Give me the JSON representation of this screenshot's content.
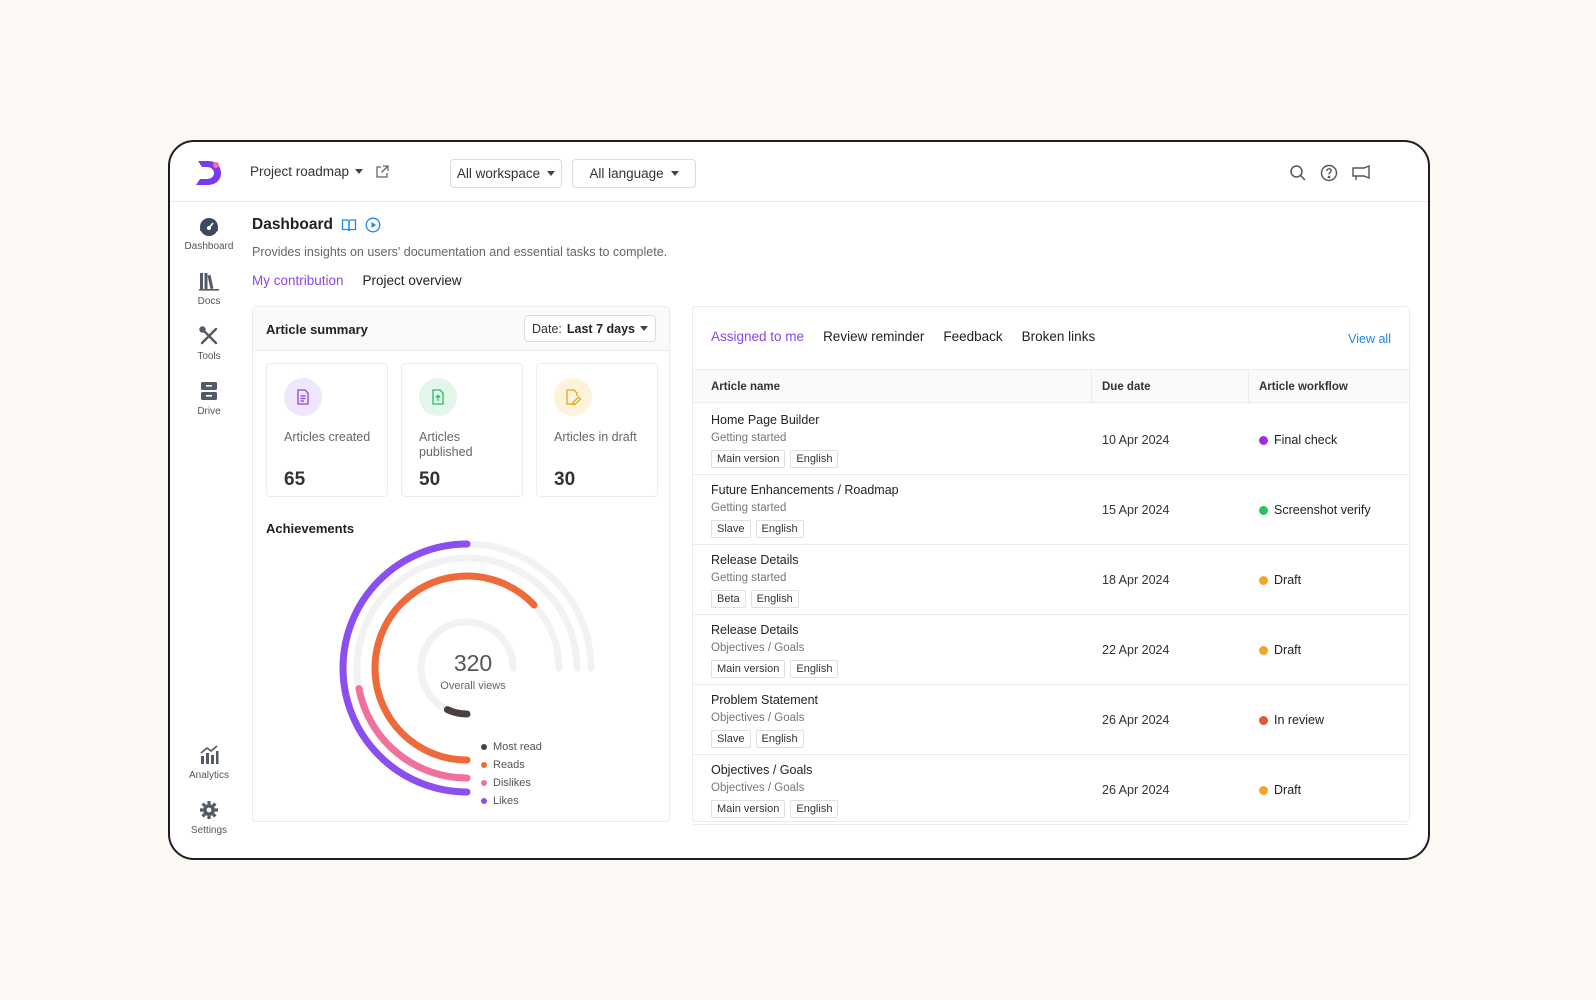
{
  "topbar": {
    "project": "Project roadmap",
    "workspace": "All workspace",
    "language": "All language"
  },
  "sidenav": [
    {
      "label": "Dashboard",
      "icon": "dashboard-icon"
    },
    {
      "label": "Docs",
      "icon": "docs-icon"
    },
    {
      "label": "Tools",
      "icon": "tools-icon"
    },
    {
      "label": "Drive",
      "icon": "drive-icon"
    },
    {
      "label": "Analytics",
      "icon": "analytics-icon"
    },
    {
      "label": "Settings",
      "icon": "gear-icon"
    }
  ],
  "header": {
    "title": "Dashboard",
    "description": "Provides insights on users' documentation and essential tasks to complete.",
    "tabs": [
      "My contribution",
      "Project overview"
    ]
  },
  "summary": {
    "title": "Article summary",
    "date_label": "Date:",
    "date_value": "Last 7 days",
    "cards": [
      {
        "label": "Articles created",
        "value": "65",
        "color": "#8b46e6",
        "bg": "#efe6fb"
      },
      {
        "label": "Articles published",
        "value": "50",
        "color": "#2fb36b",
        "bg": "#e3f6ea"
      },
      {
        "label": "Articles in draft",
        "value": "30",
        "color": "#e8a417",
        "bg": "#fdf3dd"
      }
    ]
  },
  "achievements": {
    "title": "Achievements",
    "center_value": "320",
    "center_label": "Overall views"
  },
  "chart_data": {
    "type": "radial-bar",
    "series": [
      {
        "name": "Likes",
        "value": 0.5,
        "color": "#8b4ff0"
      },
      {
        "name": "Dislikes",
        "value": 0.22,
        "color": "#f0729b"
      },
      {
        "name": "Reads",
        "value": 0.63,
        "color": "#ef6a3a"
      },
      {
        "name": "Most read",
        "value": 0.07,
        "color": "#4a403d"
      }
    ],
    "legend": [
      "Most read",
      "Reads",
      "Dislikes",
      "Likes"
    ],
    "legend_colors": [
      "#4a403d",
      "#ef6a3a",
      "#f0729b",
      "#8b4ff0"
    ]
  },
  "tasks": {
    "tabs": [
      "Assigned to me",
      "Review reminder",
      "Feedback",
      "Broken links"
    ],
    "view_all": "View all",
    "columns": [
      "Article name",
      "Due date",
      "Article workflow"
    ],
    "rows": [
      {
        "name": "Home Page Builder",
        "category": "Getting started",
        "tags": [
          "Main version",
          "English"
        ],
        "due": "10 Apr 2024",
        "workflow": "Final check",
        "color": "#9b30e0"
      },
      {
        "name": "Future Enhancements / Roadmap",
        "category": "Getting started",
        "tags": [
          "Slave",
          "English"
        ],
        "due": "15 Apr 2024",
        "workflow": "Screenshot verify",
        "color": "#22c55e"
      },
      {
        "name": "Release Details",
        "category": "Getting started",
        "tags": [
          "Beta",
          "English"
        ],
        "due": "18 Apr 2024",
        "workflow": "Draft",
        "color": "#f5a524"
      },
      {
        "name": "Release Details",
        "category": "Objectives / Goals",
        "tags": [
          "Main version",
          "English"
        ],
        "due": "22 Apr 2024",
        "workflow": "Draft",
        "color": "#f5a524"
      },
      {
        "name": "Problem Statement",
        "category": "Objectives / Goals",
        "tags": [
          "Slave",
          "English"
        ],
        "due": "26 Apr 2024",
        "workflow": "In review",
        "color": "#e5533d"
      },
      {
        "name": "Objectives / Goals",
        "category": "Objectives / Goals",
        "tags": [
          "Main version",
          "English"
        ],
        "due": "26 Apr 2024",
        "workflow": "Draft",
        "color": "#f5a524"
      }
    ]
  }
}
